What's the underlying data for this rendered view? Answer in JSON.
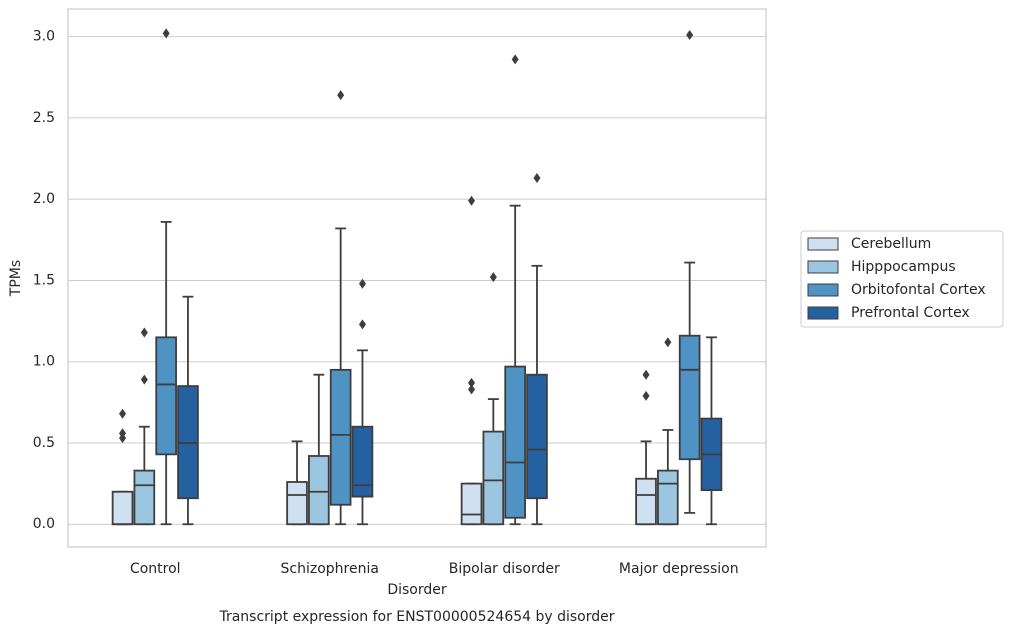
{
  "chart_data": {
    "type": "box",
    "title": "Transcript expression for ENST00000524654 by disorder",
    "x_label": "Disorder",
    "y_label": "TPMs",
    "categories": [
      "Control",
      "Schizophrenia",
      "Bipolar disorder",
      "Major depression"
    ],
    "ylim": [
      -0.14,
      3.17
    ],
    "yticks": [
      {
        "value": 0,
        "label": "0.0"
      },
      0.5,
      {
        "value": 1,
        "label": "1.0"
      },
      1.5,
      {
        "value": 2,
        "label": "2.0"
      },
      2.5,
      {
        "value": 3,
        "label": "3.0"
      }
    ],
    "grid": true,
    "legend": "right",
    "series": [
      {
        "name": "Cerebellum",
        "color": "#cfe0f0",
        "boxes": [
          {
            "low": 0,
            "q1": 0,
            "median": 0,
            "q3": 0.2,
            "high": 0.2,
            "outliers": [
              0.68,
              0.56,
              0.53
            ]
          },
          {
            "low": 0,
            "q1": 0,
            "median": 0.18,
            "q3": 0.26,
            "high": 0.51,
            "outliers": []
          },
          {
            "low": 0,
            "q1": 0,
            "median": 0.06,
            "q3": 0.25,
            "high": 0.25,
            "outliers": [
              1.99,
              0.87,
              0.83
            ]
          },
          {
            "low": 0,
            "q1": 0,
            "median": 0.18,
            "q3": 0.28,
            "high": 0.51,
            "outliers": [
              0.92,
              0.79
            ]
          }
        ]
      },
      {
        "name": "Hipppocampus",
        "color": "#9cc5df",
        "boxes": [
          {
            "low": 0,
            "q1": 0,
            "median": 0.24,
            "q3": 0.33,
            "high": 0.6,
            "outliers": [
              1.18,
              0.89
            ]
          },
          {
            "low": 0,
            "q1": 0,
            "median": 0.2,
            "q3": 0.42,
            "high": 0.92,
            "outliers": []
          },
          {
            "low": 0,
            "q1": 0,
            "median": 0.27,
            "q3": 0.57,
            "high": 0.77,
            "outliers": [
              1.52
            ]
          },
          {
            "low": 0,
            "q1": 0,
            "median": 0.25,
            "q3": 0.33,
            "high": 0.58,
            "outliers": [
              1.12
            ]
          }
        ]
      },
      {
        "name": "Orbitofontal Cortex",
        "color": "#4f93c4",
        "boxes": [
          {
            "low": 0,
            "q1": 0.43,
            "median": 0.86,
            "q3": 1.15,
            "high": 1.86,
            "outliers": [
              3.02
            ]
          },
          {
            "low": 0,
            "q1": 0.12,
            "median": 0.55,
            "q3": 0.95,
            "high": 1.82,
            "outliers": [
              2.64
            ]
          },
          {
            "low": 0,
            "q1": 0.04,
            "median": 0.38,
            "q3": 0.97,
            "high": 1.96,
            "outliers": [
              2.86
            ]
          },
          {
            "low": 0.07,
            "q1": 0.4,
            "median": 0.95,
            "q3": 1.16,
            "high": 1.61,
            "outliers": [
              3.01
            ]
          }
        ]
      },
      {
        "name": "Prefrontal Cortex",
        "color": "#2561a0",
        "boxes": [
          {
            "low": 0,
            "q1": 0.16,
            "median": 0.5,
            "q3": 0.85,
            "high": 1.4,
            "outliers": []
          },
          {
            "low": 0,
            "q1": 0.17,
            "median": 0.24,
            "q3": 0.6,
            "high": 1.07,
            "outliers": [
              1.48,
              1.23
            ]
          },
          {
            "low": 0,
            "q1": 0.16,
            "median": 0.46,
            "q3": 0.92,
            "high": 1.59,
            "outliers": [
              2.13
            ]
          },
          {
            "low": 0,
            "q1": 0.21,
            "median": 0.43,
            "q3": 0.65,
            "high": 1.15,
            "outliers": []
          }
        ]
      }
    ]
  }
}
